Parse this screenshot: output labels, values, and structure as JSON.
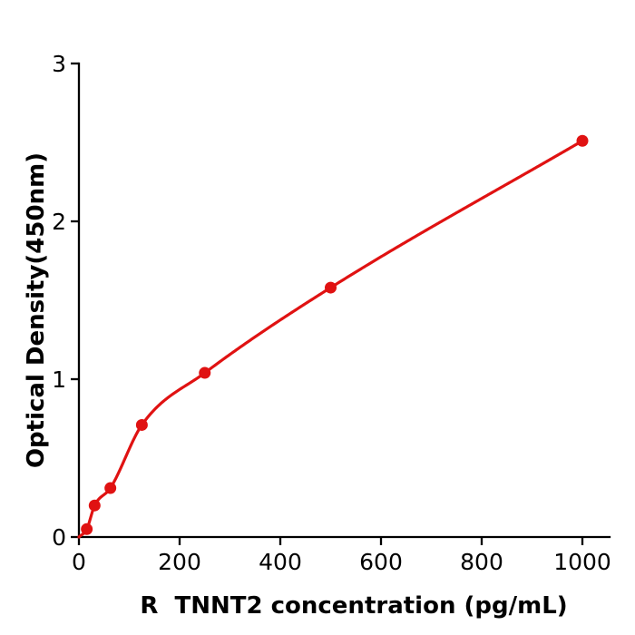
{
  "chart_data": {
    "type": "scatter",
    "title": "",
    "xlabel": "R  TNNT2 concentration (pg/mL)",
    "ylabel": "Optical Density(450nm)",
    "x": [
      15.6,
      31.2,
      62.5,
      125,
      250,
      500,
      1000
    ],
    "y": [
      0.05,
      0.2,
      0.31,
      0.71,
      1.04,
      1.58,
      2.51
    ],
    "curve_origin": {
      "x": 0,
      "y": 0
    },
    "xticks": [
      0,
      200,
      400,
      600,
      800,
      1000
    ],
    "yticks": [
      0,
      1,
      2,
      3
    ],
    "xlim": [
      0,
      1054
    ],
    "ylim": [
      0,
      3
    ],
    "grid": false,
    "legend_position": "none",
    "marker_color": "#e01212",
    "line_color": "#e01212",
    "axis_color": "#000000",
    "background_color": "#ffffff"
  }
}
